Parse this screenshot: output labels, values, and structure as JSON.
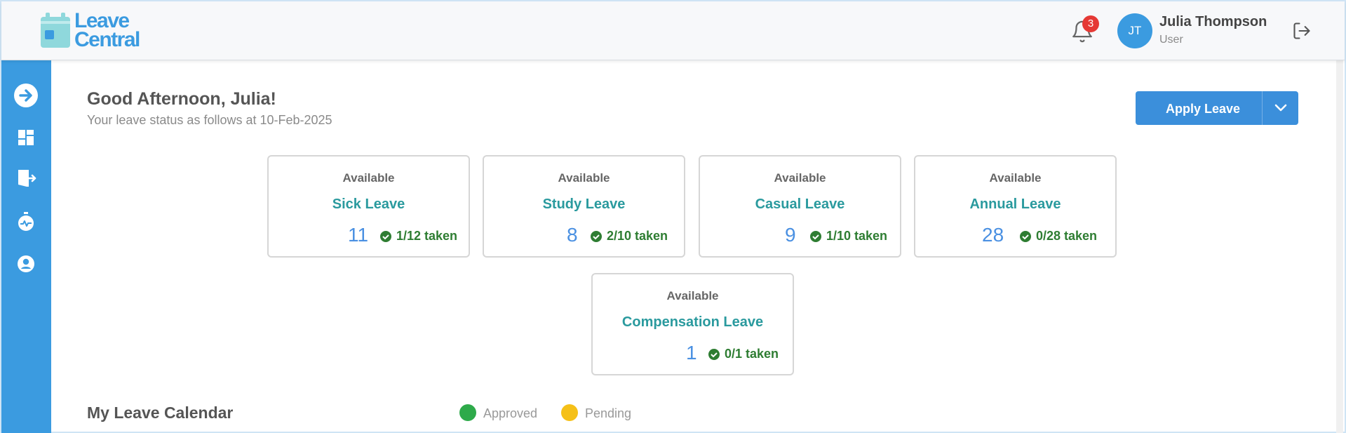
{
  "brand": {
    "line1": "Leave",
    "line2": "Central"
  },
  "header": {
    "notification_count": "3",
    "user": {
      "initials": "JT",
      "name": "Julia Thompson",
      "role": "User"
    }
  },
  "main": {
    "greeting": "Good Afternoon, Julia!",
    "subline": "Your leave status as follows at 10-Feb-2025",
    "apply_label": "Apply Leave"
  },
  "cards": [
    {
      "available_label": "Available",
      "type": "Sick Leave",
      "count": "11",
      "taken": "1/12 taken"
    },
    {
      "available_label": "Available",
      "type": "Study Leave",
      "count": "8",
      "taken": "2/10 taken"
    },
    {
      "available_label": "Available",
      "type": "Casual Leave",
      "count": "9",
      "taken": "1/10 taken"
    },
    {
      "available_label": "Available",
      "type": "Annual Leave",
      "count": "28",
      "taken": "0/28 taken"
    },
    {
      "available_label": "Available",
      "type": "Compensation Leave",
      "count": "1",
      "taken": "0/1 taken"
    }
  ],
  "calendar": {
    "title": "My Leave Calendar",
    "legend": [
      {
        "label": "Approved",
        "color": "#2eaa4a"
      },
      {
        "label": "Pending",
        "color": "#f5c018"
      }
    ]
  },
  "colors": {
    "primary": "#3b9be0",
    "teal": "#2a9a9e",
    "taken_green": "#2e7d32"
  }
}
